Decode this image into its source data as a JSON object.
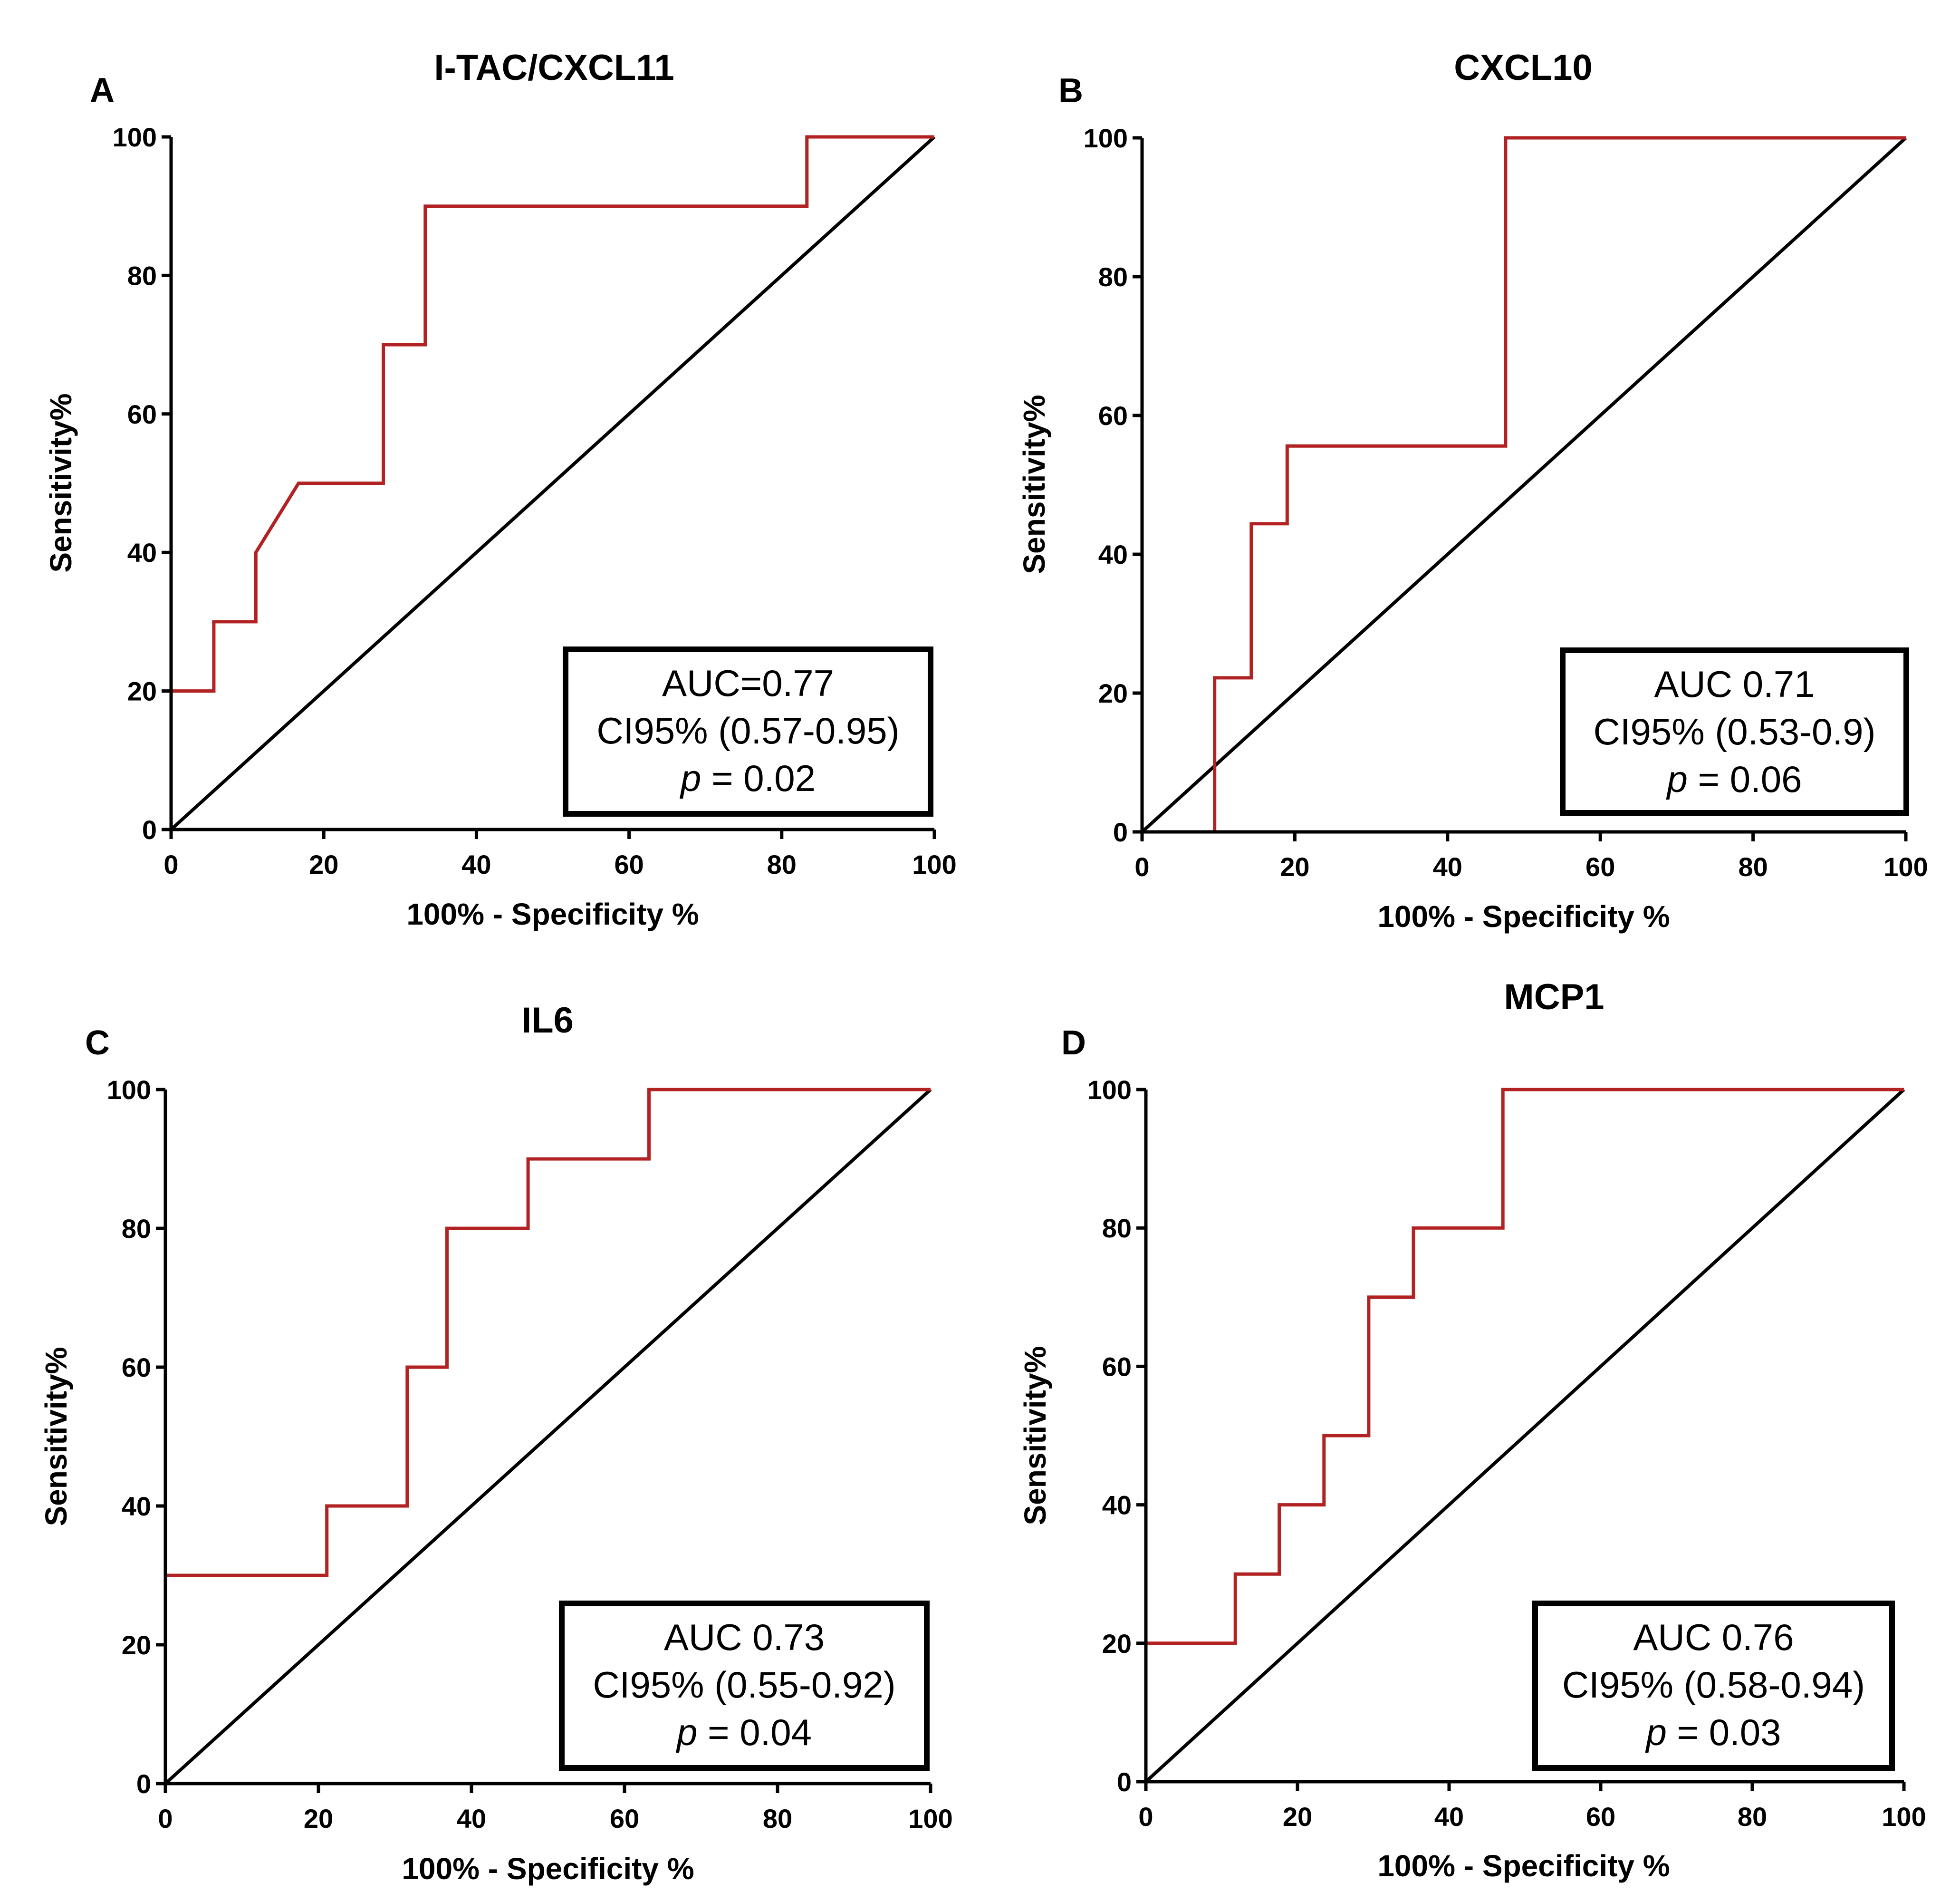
{
  "chart_data": [
    {
      "type": "line",
      "panel_label": "A",
      "title": "I-TAC/CXCL11",
      "xlabel": "100% - Specificity %",
      "ylabel": "Sensitivity%",
      "xlim": [
        0,
        100
      ],
      "ylim": [
        0,
        100
      ],
      "xticks": [
        "0",
        "20",
        "40",
        "60",
        "80",
        "100"
      ],
      "yticks": [
        "0",
        "20",
        "40",
        "60",
        "80",
        "100"
      ],
      "series": [
        {
          "name": "ROC curve",
          "color": "#b22222",
          "x": [
            0,
            0,
            5.6,
            5.6,
            11.1,
            11.1,
            16.7,
            27.8,
            27.8,
            33.3,
            33.3,
            83.3,
            83.3,
            100
          ],
          "y": [
            0,
            20,
            20,
            30,
            30,
            40,
            50,
            50,
            70,
            70,
            90,
            90,
            100,
            100
          ]
        },
        {
          "name": "Reference line",
          "color": "#000000",
          "x": [
            0,
            100
          ],
          "y": [
            0,
            100
          ]
        }
      ],
      "stats": {
        "auc": "AUC=0.77",
        "ci": "CI95% (0.57-0.95)",
        "p_symbol": "p",
        "p_value": " = 0.02"
      }
    },
    {
      "type": "line",
      "panel_label": "B",
      "title": "CXCL10",
      "xlabel": "100% - Specificity %",
      "ylabel": "Sensitivity%",
      "xlim": [
        0,
        100
      ],
      "ylim": [
        0,
        100
      ],
      "xticks": [
        "0",
        "20",
        "40",
        "60",
        "80",
        "100"
      ],
      "yticks": [
        "0",
        "20",
        "40",
        "60",
        "80",
        "100"
      ],
      "series": [
        {
          "name": "ROC curve",
          "color": "#b22222",
          "x": [
            0,
            9.5,
            9.5,
            14.3,
            14.3,
            19,
            19,
            47.6,
            47.6,
            100
          ],
          "y": [
            0,
            0,
            22.2,
            22.2,
            44.4,
            44.4,
            55.6,
            55.6,
            100,
            100
          ]
        },
        {
          "name": "Reference line",
          "color": "#000000",
          "x": [
            0,
            100
          ],
          "y": [
            0,
            100
          ]
        }
      ],
      "stats": {
        "auc": "AUC 0.71",
        "ci": "CI95% (0.53-0.9)",
        "p_symbol": "p",
        "p_value": " = 0.06"
      }
    },
    {
      "type": "line",
      "panel_label": "C",
      "title": "IL6",
      "xlabel": "100% - Specificity %",
      "ylabel": "Sensitivity%",
      "xlim": [
        0,
        100
      ],
      "ylim": [
        0,
        100
      ],
      "xticks": [
        "0",
        "20",
        "40",
        "60",
        "80",
        "100"
      ],
      "yticks": [
        "0",
        "20",
        "40",
        "60",
        "80",
        "100"
      ],
      "series": [
        {
          "name": "ROC curve",
          "color": "#b22222",
          "x": [
            0,
            0,
            21.1,
            21.1,
            31.6,
            31.6,
            36.8,
            36.8,
            47.4,
            47.4,
            63.2,
            63.2,
            100
          ],
          "y": [
            0,
            30,
            30,
            40,
            40,
            60,
            60,
            80,
            80,
            90,
            90,
            100,
            100
          ]
        },
        {
          "name": "Reference line",
          "color": "#000000",
          "x": [
            0,
            100
          ],
          "y": [
            0,
            100
          ]
        }
      ],
      "stats": {
        "auc": "AUC 0.73",
        "ci": "CI95% (0.55-0.92)",
        "p_symbol": "p",
        "p_value": " = 0.04"
      }
    },
    {
      "type": "line",
      "panel_label": "D",
      "title": "MCP1",
      "xlabel": "100% - Specificity %",
      "ylabel": "Sensitivity%",
      "xlim": [
        0,
        100
      ],
      "ylim": [
        0,
        100
      ],
      "xticks": [
        "0",
        "20",
        "40",
        "60",
        "80",
        "100"
      ],
      "yticks": [
        "0",
        "20",
        "40",
        "60",
        "80",
        "100"
      ],
      "series": [
        {
          "name": "ROC curve",
          "color": "#b22222",
          "x": [
            0,
            0,
            11.8,
            11.8,
            17.6,
            17.6,
            23.5,
            23.5,
            29.4,
            29.4,
            35.3,
            35.3,
            47.1,
            47.1,
            100
          ],
          "y": [
            0,
            20,
            20,
            30,
            30,
            40,
            40,
            50,
            50,
            70,
            70,
            80,
            80,
            100,
            100
          ]
        },
        {
          "name": "Reference line",
          "color": "#000000",
          "x": [
            0,
            100
          ],
          "y": [
            0,
            100
          ]
        }
      ],
      "stats": {
        "auc": "AUC 0.76",
        "ci": "CI95% (0.58-0.94)",
        "p_symbol": "p",
        "p_value": " = 0.03"
      }
    }
  ]
}
